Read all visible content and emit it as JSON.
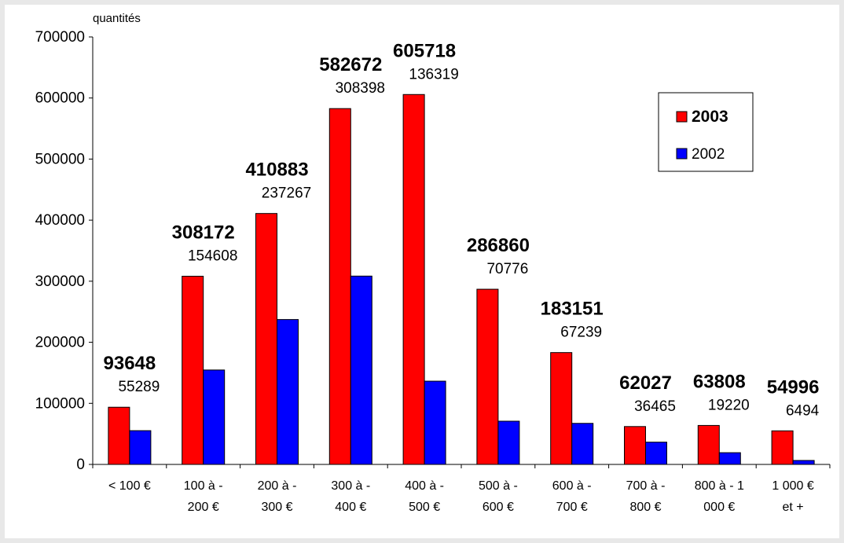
{
  "chart_data": {
    "type": "bar",
    "ylabel": "quantités",
    "ylim": [
      0,
      700000
    ],
    "yticks": [
      "0",
      "100000",
      "200000",
      "300000",
      "400000",
      "500000",
      "600000",
      "700000"
    ],
    "categories": [
      [
        "< 100 €"
      ],
      [
        "100 à -",
        "200 €"
      ],
      [
        "200 à -",
        "300 €"
      ],
      [
        "300 à -",
        "400 €"
      ],
      [
        "400 à -",
        "500 €"
      ],
      [
        "500 à -",
        "600 €"
      ],
      [
        "600 à -",
        "700 €"
      ],
      [
        "700 à -",
        "800 €"
      ],
      [
        "800 à - 1",
        "000 €"
      ],
      [
        "1 000 €",
        "et +"
      ]
    ],
    "series": [
      {
        "name": "2003",
        "color": "#ff0000",
        "values": [
          93648,
          308172,
          410883,
          582672,
          605718,
          286860,
          183151,
          62027,
          63808,
          54996
        ],
        "labels": [
          "93648",
          "308172",
          "410883",
          "582672",
          "605718",
          "286860",
          "183151",
          "62027",
          "63808",
          "54996"
        ]
      },
      {
        "name": "2002",
        "color": "#0000ff",
        "values": [
          55289,
          154608,
          237267,
          308398,
          136319,
          70776,
          67239,
          36465,
          19220,
          6494
        ],
        "labels": [
          "55289",
          "154608",
          "237267",
          "308398",
          "136319",
          "70776",
          "67239",
          "36465",
          "19220",
          "6494"
        ]
      }
    ],
    "legend": {
      "position": "top-right"
    },
    "grid": false
  }
}
